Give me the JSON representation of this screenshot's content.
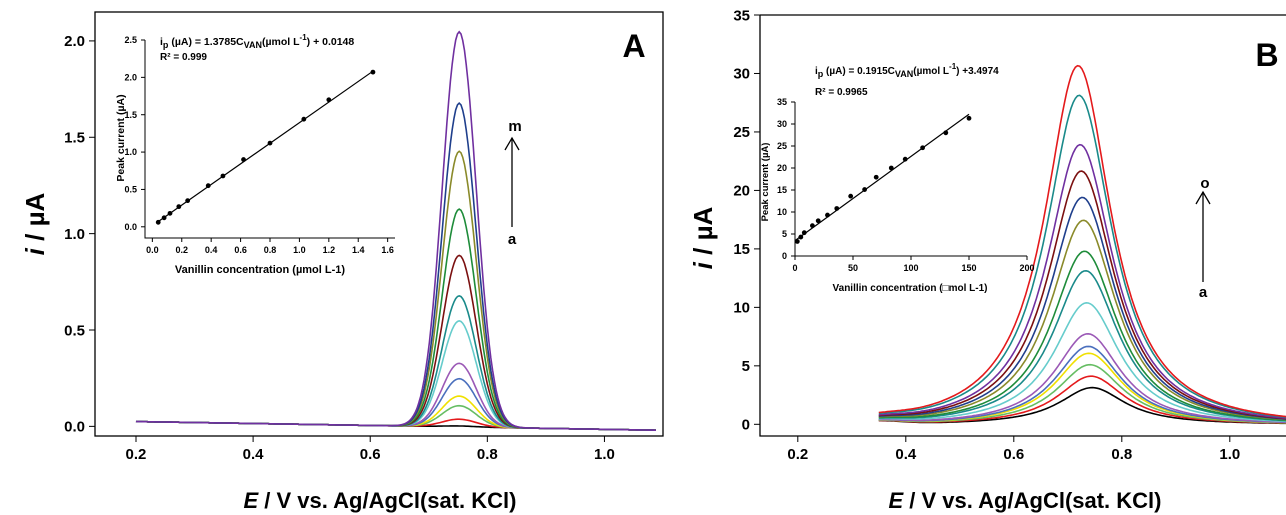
{
  "panels": [
    {
      "id": "A",
      "letter": "A",
      "ylabel_italic": "i",
      "ylabel_rest": " / µA",
      "xlabel_italic": "E",
      "xlabel_rest": " / V  vs. Ag/AgCl(sat. KCl)",
      "arrow_top": "m",
      "arrow_bottom": "a",
      "inset": {
        "eq_prefix": "i",
        "eq_sub": "p",
        "eq_body": " (µA)  = 1.3785C",
        "eq_sub2": "VAN",
        "eq_unit": "(µmol L",
        "eq_sup": "-1",
        "eq_tail": ")  + 0.0148",
        "r2": "R² = 0.999",
        "xlabel": "Vanillin concentration (µmol L-1)",
        "ylabel": "Peak current (µA)"
      }
    },
    {
      "id": "B",
      "letter": "B",
      "ylabel_italic": "i",
      "ylabel_rest": " / µA",
      "xlabel_italic": "E",
      "xlabel_rest": " / V  vs. Ag/AgCl(sat. KCl)",
      "arrow_top": "o",
      "arrow_bottom": "a",
      "inset": {
        "eq_prefix": "i",
        "eq_sub": "p",
        "eq_body": " (µA)  = 0.1915C",
        "eq_sub2": "VAN",
        "eq_unit": "(µmol L",
        "eq_sup": "-1",
        "eq_tail": ") +3.4974",
        "r2": "R² = 0.9965",
        "xlabel": "Vanillin concentration (□mol L-1)",
        "ylabel": "Peak current (µA)"
      }
    }
  ],
  "chart_data": [
    {
      "type": "line",
      "panel": "A",
      "xlim": [
        0.13,
        1.1
      ],
      "ylim": [
        -0.05,
        2.15
      ],
      "xticks": [
        "0.2",
        "0.4",
        "0.6",
        "0.8",
        "1.0"
      ],
      "xtick_values": [
        0.2,
        0.4,
        0.6,
        0.8,
        1.0
      ],
      "yticks": [
        "0.0",
        "0.5",
        "1.0",
        "1.5",
        "2.0"
      ],
      "ytick_values": [
        0.0,
        0.5,
        1.0,
        1.5,
        2.0
      ],
      "peak_potential": 0.752,
      "peak_width": 0.029,
      "baseline_start": [
        0.2,
        0.025
      ],
      "baseline_end": [
        1.09,
        -0.02
      ],
      "series": [
        {
          "peak": 0.005,
          "color": "#000000"
        },
        {
          "peak": 0.04,
          "color": "#e41a1c"
        },
        {
          "peak": 0.11,
          "color": "#66bd63"
        },
        {
          "peak": 0.16,
          "color": "#f0e000"
        },
        {
          "peak": 0.25,
          "color": "#4a6fbd"
        },
        {
          "peak": 0.33,
          "color": "#9b59b6"
        },
        {
          "peak": 0.55,
          "color": "#66cccc"
        },
        {
          "peak": 0.68,
          "color": "#1a8a8a"
        },
        {
          "peak": 0.89,
          "color": "#7b1010"
        },
        {
          "peak": 1.13,
          "color": "#1e8c3a"
        },
        {
          "peak": 1.43,
          "color": "#8a8a2a"
        },
        {
          "peak": 1.68,
          "color": "#1f3f8c"
        },
        {
          "peak": 2.05,
          "color": "#7030a0"
        }
      ],
      "inset": {
        "type": "scatter",
        "xlim": [
          -0.05,
          1.65
        ],
        "ylim": [
          -0.15,
          2.5
        ],
        "xticks": [
          "0.0",
          "0.2",
          "0.4",
          "0.6",
          "0.8",
          "1.0",
          "1.2",
          "1.4",
          "1.6"
        ],
        "xtick_values": [
          0,
          0.2,
          0.4,
          0.6,
          0.8,
          1.0,
          1.2,
          1.4,
          1.6
        ],
        "yticks": [
          "0.0",
          "0.5",
          "1.0",
          "1.5",
          "2.0",
          "2.5"
        ],
        "ytick_values": [
          0,
          0.5,
          1.0,
          1.5,
          2.0,
          2.5
        ],
        "x": [
          0.04,
          0.08,
          0.12,
          0.18,
          0.24,
          0.38,
          0.48,
          0.62,
          0.8,
          1.03,
          1.2,
          1.5
        ],
        "y": [
          0.06,
          0.12,
          0.18,
          0.27,
          0.35,
          0.55,
          0.68,
          0.9,
          1.12,
          1.44,
          1.7,
          2.07
        ],
        "fit_slope": 1.3785,
        "fit_intercept": 0.0148
      }
    },
    {
      "type": "line",
      "panel": "B",
      "xlim": [
        0.13,
        1.13
      ],
      "ylim": [
        -1,
        35
      ],
      "xticks": [
        "0.2",
        "0.4",
        "0.6",
        "0.8",
        "1.0"
      ],
      "xtick_values": [
        0.2,
        0.4,
        0.6,
        0.8,
        1.0
      ],
      "yticks": [
        "0",
        "5",
        "10",
        "15",
        "20",
        "25",
        "30",
        "35"
      ],
      "ytick_values": [
        0,
        5,
        10,
        15,
        20,
        25,
        30,
        35
      ],
      "x_start": 0.35,
      "series": [
        {
          "peak": 3.2,
          "center": 0.745,
          "color": "#000000"
        },
        {
          "peak": 4.2,
          "center": 0.743,
          "color": "#e41a1c"
        },
        {
          "peak": 5.2,
          "center": 0.741,
          "color": "#66bd63"
        },
        {
          "peak": 6.2,
          "center": 0.739,
          "color": "#f0e000"
        },
        {
          "peak": 6.8,
          "center": 0.738,
          "color": "#4a6fbd"
        },
        {
          "peak": 7.9,
          "center": 0.737,
          "color": "#9b59b6"
        },
        {
          "peak": 10.6,
          "center": 0.735,
          "color": "#66cccc"
        },
        {
          "peak": 13.4,
          "center": 0.733,
          "color": "#1a8a8a"
        },
        {
          "peak": 15.1,
          "center": 0.731,
          "color": "#1e8c3a"
        },
        {
          "peak": 17.8,
          "center": 0.729,
          "color": "#8a8a2a"
        },
        {
          "peak": 19.8,
          "center": 0.727,
          "color": "#1f3f8c"
        },
        {
          "peak": 22.1,
          "center": 0.725,
          "color": "#7b1010"
        },
        {
          "peak": 24.4,
          "center": 0.723,
          "color": "#7030a0"
        },
        {
          "peak": 28.7,
          "center": 0.721,
          "color": "#1a8a8a"
        },
        {
          "peak": 31.3,
          "center": 0.719,
          "color": "#e41a1c"
        }
      ],
      "inset": {
        "type": "scatter",
        "xlim": [
          0,
          200
        ],
        "ylim": [
          0,
          35
        ],
        "xticks": [
          "0",
          "50",
          "100",
          "150",
          "200"
        ],
        "xtick_values": [
          0,
          50,
          100,
          150,
          200
        ],
        "yticks": [
          "0",
          "5",
          "10",
          "15",
          "20",
          "25",
          "30",
          "35"
        ],
        "ytick_values": [
          0,
          5,
          10,
          15,
          20,
          25,
          30,
          35
        ],
        "x": [
          2,
          5,
          8,
          15,
          20,
          28,
          36,
          48,
          60,
          70,
          83,
          95,
          110,
          130,
          150
        ],
        "y": [
          3.3,
          4.3,
          5.3,
          6.9,
          8.0,
          9.3,
          10.8,
          13.6,
          15.1,
          17.9,
          20.0,
          22.0,
          24.6,
          28.0,
          31.3
        ],
        "fit_slope": 0.1915,
        "fit_intercept": 3.4974
      }
    }
  ]
}
